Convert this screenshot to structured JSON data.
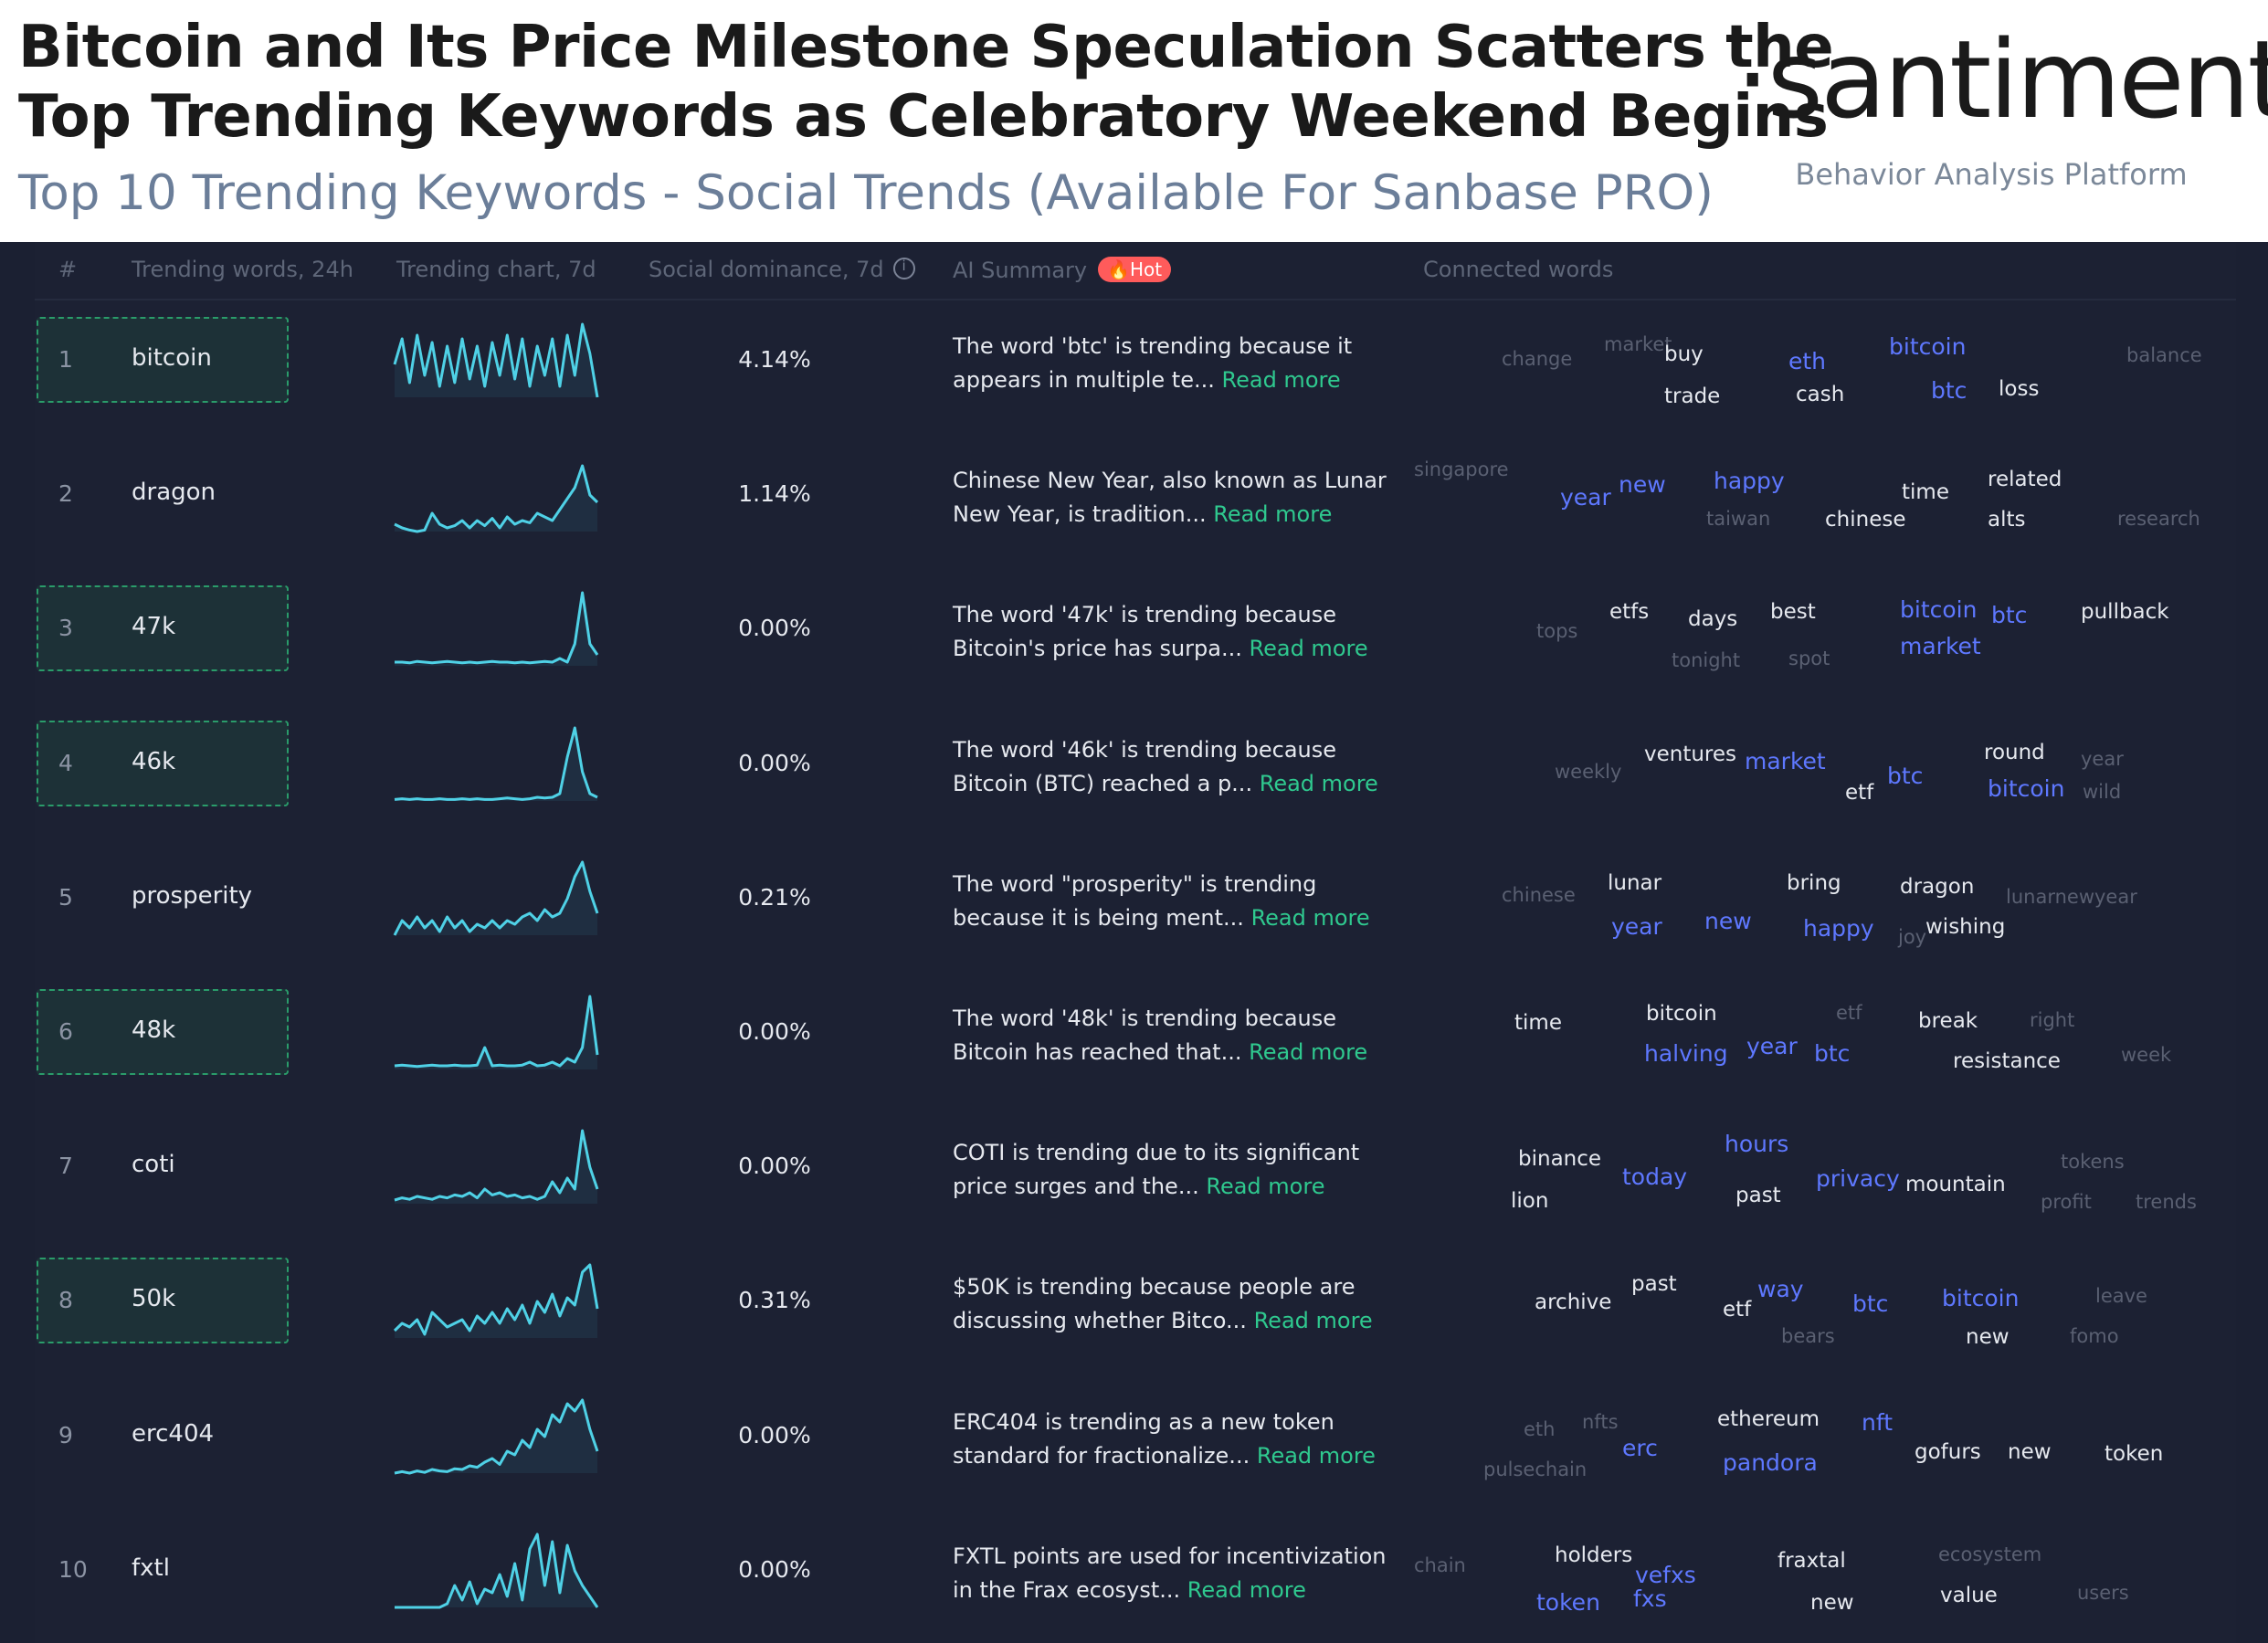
{
  "header": {
    "title_line1": "Bitcoin and Its Price Milestone Speculation Scatters the",
    "title_line2": "Top Trending Keywords as Celebratory Weekend Begins",
    "subtitle": "Top 10 Trending Keywords - Social Trends (Available For Sanbase PRO)",
    "brand": "·santiment·",
    "brand_tagline": "Behavior Analysis Platform"
  },
  "table": {
    "columns": {
      "rank": "#",
      "word": "Trending words, 24h",
      "chart": "Trending chart, 7d",
      "dominance": "Social dominance, 7d",
      "summary": "AI Summary",
      "hot_badge": "🔥Hot",
      "connected": "Connected words"
    },
    "read_more": "Read more",
    "rows": [
      {
        "rank": "1",
        "word": "bitcoin",
        "highlighted": true,
        "dominance": "4.14%",
        "summary_line1": "The word 'btc' is trending because it",
        "summary_line2": "appears in multiple te...",
        "spark": [
          0.45,
          0.8,
          0.2,
          0.85,
          0.3,
          0.75,
          0.15,
          0.7,
          0.2,
          0.8,
          0.25,
          0.7,
          0.15,
          0.75,
          0.3,
          0.85,
          0.25,
          0.8,
          0.15,
          0.7,
          0.3,
          0.8,
          0.15,
          0.85,
          0.3,
          1.0,
          0.6,
          0.0
        ],
        "connected": [
          {
            "t": "change",
            "s": "g"
          },
          {
            "t": "market",
            "s": "g"
          },
          {
            "t": "buy",
            "s": "w"
          },
          {
            "t": "trade",
            "s": "w"
          },
          {
            "t": "eth",
            "s": "b"
          },
          {
            "t": "cash",
            "s": "w"
          },
          {
            "t": "bitcoin",
            "s": "b"
          },
          {
            "t": "btc",
            "s": "b"
          },
          {
            "t": "loss",
            "s": "w"
          },
          {
            "t": "balance",
            "s": "g"
          }
        ]
      },
      {
        "rank": "2",
        "word": "dragon",
        "highlighted": false,
        "dominance": "1.14%",
        "summary_line1": "Chinese New Year, also known as Lunar",
        "summary_line2": "New Year, is tradition...",
        "spark": [
          0.1,
          0.05,
          0.02,
          0.0,
          0.02,
          0.25,
          0.1,
          0.05,
          0.08,
          0.15,
          0.05,
          0.15,
          0.08,
          0.18,
          0.05,
          0.2,
          0.1,
          0.15,
          0.12,
          0.25,
          0.2,
          0.15,
          0.3,
          0.45,
          0.6,
          0.9,
          0.5,
          0.4
        ],
        "connected": [
          {
            "t": "singapore",
            "s": "g"
          },
          {
            "t": "year",
            "s": "b"
          },
          {
            "t": "new",
            "s": "b"
          },
          {
            "t": "taiwan",
            "s": "g"
          },
          {
            "t": "happy",
            "s": "b"
          },
          {
            "t": "chinese",
            "s": "w"
          },
          {
            "t": "time",
            "s": "w"
          },
          {
            "t": "related",
            "s": "w"
          },
          {
            "t": "alts",
            "s": "w"
          },
          {
            "t": "research",
            "s": "g"
          }
        ]
      },
      {
        "rank": "3",
        "word": "47k",
        "highlighted": true,
        "dominance": "0.00%",
        "summary_line1": "The word '47k' is trending because",
        "summary_line2": "Bitcoin's price has surpa...",
        "spark": [
          0.05,
          0.05,
          0.04,
          0.06,
          0.05,
          0.04,
          0.05,
          0.06,
          0.05,
          0.04,
          0.05,
          0.04,
          0.05,
          0.06,
          0.05,
          0.05,
          0.04,
          0.05,
          0.04,
          0.05,
          0.06,
          0.05,
          0.1,
          0.05,
          0.3,
          1.0,
          0.3,
          0.15
        ],
        "connected": [
          {
            "t": "tops",
            "s": "g"
          },
          {
            "t": "etfs",
            "s": "w"
          },
          {
            "t": "days",
            "s": "w"
          },
          {
            "t": "tonight",
            "s": "g"
          },
          {
            "t": "best",
            "s": "w"
          },
          {
            "t": "spot",
            "s": "g"
          },
          {
            "t": "bitcoin",
            "s": "b"
          },
          {
            "t": "market",
            "s": "b"
          },
          {
            "t": "btc",
            "s": "b"
          },
          {
            "t": "pullback",
            "s": "w"
          }
        ]
      },
      {
        "rank": "4",
        "word": "46k",
        "highlighted": true,
        "dominance": "0.00%",
        "summary_line1": "The word '46k' is trending because",
        "summary_line2": "Bitcoin (BTC) reached a p...",
        "spark": [
          0.02,
          0.03,
          0.02,
          0.03,
          0.02,
          0.02,
          0.03,
          0.02,
          0.02,
          0.03,
          0.02,
          0.03,
          0.02,
          0.02,
          0.03,
          0.04,
          0.03,
          0.02,
          0.03,
          0.05,
          0.04,
          0.05,
          0.1,
          0.6,
          1.0,
          0.4,
          0.1,
          0.05
        ],
        "connected": [
          {
            "t": "weekly",
            "s": "g"
          },
          {
            "t": "ventures",
            "s": "w"
          },
          {
            "t": "market",
            "s": "b"
          },
          {
            "t": "etf",
            "s": "w"
          },
          {
            "t": "btc",
            "s": "b"
          },
          {
            "t": "round",
            "s": "w"
          },
          {
            "t": "bitcoin",
            "s": "b"
          },
          {
            "t": "year",
            "s": "g"
          },
          {
            "t": "wild",
            "s": "g"
          }
        ]
      },
      {
        "rank": "5",
        "word": "prosperity",
        "highlighted": false,
        "dominance": "0.21%",
        "summary_line1": "The word \"prosperity\" is trending",
        "summary_line2": "because it is being ment...",
        "spark": [
          0.0,
          0.2,
          0.1,
          0.25,
          0.1,
          0.2,
          0.05,
          0.25,
          0.1,
          0.2,
          0.05,
          0.15,
          0.1,
          0.2,
          0.1,
          0.2,
          0.15,
          0.25,
          0.3,
          0.2,
          0.35,
          0.25,
          0.3,
          0.5,
          0.8,
          1.0,
          0.6,
          0.3
        ],
        "connected": [
          {
            "t": "chinese",
            "s": "g"
          },
          {
            "t": "lunar",
            "s": "w"
          },
          {
            "t": "year",
            "s": "b"
          },
          {
            "t": "new",
            "s": "b"
          },
          {
            "t": "bring",
            "s": "w"
          },
          {
            "t": "happy",
            "s": "b"
          },
          {
            "t": "joy",
            "s": "g"
          },
          {
            "t": "dragon",
            "s": "w"
          },
          {
            "t": "wishing",
            "s": "w"
          },
          {
            "t": "lunarnewyear",
            "s": "g"
          }
        ]
      },
      {
        "rank": "6",
        "word": "48k",
        "highlighted": true,
        "dominance": "0.00%",
        "summary_line1": "The word '48k' is trending because",
        "summary_line2": "Bitcoin has reached that...",
        "spark": [
          0.05,
          0.06,
          0.05,
          0.04,
          0.05,
          0.06,
          0.05,
          0.05,
          0.06,
          0.05,
          0.05,
          0.06,
          0.3,
          0.05,
          0.06,
          0.05,
          0.05,
          0.06,
          0.1,
          0.05,
          0.06,
          0.1,
          0.05,
          0.15,
          0.1,
          0.3,
          1.0,
          0.2
        ],
        "connected": [
          {
            "t": "time",
            "s": "w"
          },
          {
            "t": "bitcoin",
            "s": "w"
          },
          {
            "t": "halving",
            "s": "b"
          },
          {
            "t": "year",
            "s": "b"
          },
          {
            "t": "etf",
            "s": "g"
          },
          {
            "t": "btc",
            "s": "b"
          },
          {
            "t": "break",
            "s": "w"
          },
          {
            "t": "resistance",
            "s": "w"
          },
          {
            "t": "right",
            "s": "g"
          },
          {
            "t": "week",
            "s": "g"
          }
        ]
      },
      {
        "rank": "7",
        "word": "coti",
        "highlighted": false,
        "dominance": "0.00%",
        "summary_line1": "COTI is trending due to its significant",
        "summary_line2": "price surges and the...",
        "spark": [
          0.05,
          0.08,
          0.06,
          0.1,
          0.08,
          0.06,
          0.1,
          0.08,
          0.12,
          0.1,
          0.15,
          0.08,
          0.2,
          0.12,
          0.15,
          0.1,
          0.12,
          0.08,
          0.1,
          0.06,
          0.1,
          0.3,
          0.15,
          0.35,
          0.2,
          1.0,
          0.5,
          0.2
        ],
        "connected": [
          {
            "t": "binance",
            "s": "w"
          },
          {
            "t": "lion",
            "s": "w"
          },
          {
            "t": "today",
            "s": "b"
          },
          {
            "t": "hours",
            "s": "b"
          },
          {
            "t": "past",
            "s": "w"
          },
          {
            "t": "privacy",
            "s": "b"
          },
          {
            "t": "mountain",
            "s": "w"
          },
          {
            "t": "tokens",
            "s": "g"
          },
          {
            "t": "profit",
            "s": "g"
          },
          {
            "t": "trends",
            "s": "g"
          }
        ]
      },
      {
        "rank": "8",
        "word": "50k",
        "highlighted": true,
        "dominance": "0.31%",
        "summary_line1": "$50K is trending because people are",
        "summary_line2": "discussing whether Bitco...",
        "spark": [
          0.1,
          0.2,
          0.15,
          0.25,
          0.05,
          0.35,
          0.25,
          0.15,
          0.2,
          0.25,
          0.1,
          0.3,
          0.2,
          0.35,
          0.2,
          0.4,
          0.25,
          0.45,
          0.2,
          0.5,
          0.35,
          0.6,
          0.3,
          0.55,
          0.45,
          0.9,
          1.0,
          0.4
        ],
        "connected": [
          {
            "t": "archive",
            "s": "w"
          },
          {
            "t": "past",
            "s": "w"
          },
          {
            "t": "etf",
            "s": "w"
          },
          {
            "t": "way",
            "s": "b"
          },
          {
            "t": "bears",
            "s": "g"
          },
          {
            "t": "btc",
            "s": "b"
          },
          {
            "t": "bitcoin",
            "s": "b"
          },
          {
            "t": "new",
            "s": "w"
          },
          {
            "t": "fomo",
            "s": "g"
          },
          {
            "t": "leave",
            "s": "g"
          }
        ]
      },
      {
        "rank": "9",
        "word": "erc404",
        "highlighted": false,
        "dominance": "0.00%",
        "summary_line1": "ERC404 is trending as a new token",
        "summary_line2": "standard for fractionalize...",
        "spark": [
          0.0,
          0.02,
          0.0,
          0.03,
          0.01,
          0.05,
          0.03,
          0.02,
          0.06,
          0.05,
          0.1,
          0.08,
          0.15,
          0.2,
          0.12,
          0.3,
          0.25,
          0.45,
          0.35,
          0.6,
          0.5,
          0.8,
          0.7,
          0.95,
          0.85,
          1.0,
          0.6,
          0.3
        ],
        "connected": [
          {
            "t": "eth",
            "s": "g"
          },
          {
            "t": "nfts",
            "s": "g"
          },
          {
            "t": "pulsechain",
            "s": "g"
          },
          {
            "t": "erc",
            "s": "b"
          },
          {
            "t": "ethereum",
            "s": "w"
          },
          {
            "t": "pandora",
            "s": "b"
          },
          {
            "t": "nft",
            "s": "b"
          },
          {
            "t": "gofurs",
            "s": "w"
          },
          {
            "t": "new",
            "s": "w"
          },
          {
            "t": "token",
            "s": "w"
          }
        ]
      },
      {
        "rank": "10",
        "word": "fxtl",
        "highlighted": false,
        "dominance": "0.00%",
        "summary_line1": "FXTL points are used for incentivization",
        "summary_line2": "in the Frax ecosyst...",
        "spark": [
          0.0,
          0.0,
          0.0,
          0.0,
          0.0,
          0.0,
          0.0,
          0.05,
          0.3,
          0.1,
          0.35,
          0.05,
          0.25,
          0.2,
          0.45,
          0.15,
          0.6,
          0.1,
          0.8,
          1.0,
          0.3,
          0.9,
          0.2,
          0.85,
          0.5,
          0.3,
          0.15,
          0.0
        ],
        "connected": [
          {
            "t": "chain",
            "s": "g"
          },
          {
            "t": "holders",
            "s": "w"
          },
          {
            "t": "token",
            "s": "b"
          },
          {
            "t": "vefxs",
            "s": "b"
          },
          {
            "t": "fxs",
            "s": "b"
          },
          {
            "t": "fraxtal",
            "s": "w"
          },
          {
            "t": "new",
            "s": "w"
          },
          {
            "t": "ecosystem",
            "s": "g"
          },
          {
            "t": "value",
            "s": "w"
          },
          {
            "t": "users",
            "s": "g"
          }
        ]
      }
    ]
  },
  "colors": {
    "spark_line": "#4fd1e6",
    "highlight_border": "#2a9c6a",
    "read_more": "#2fc98f",
    "accent_blue": "#5e78ff"
  }
}
